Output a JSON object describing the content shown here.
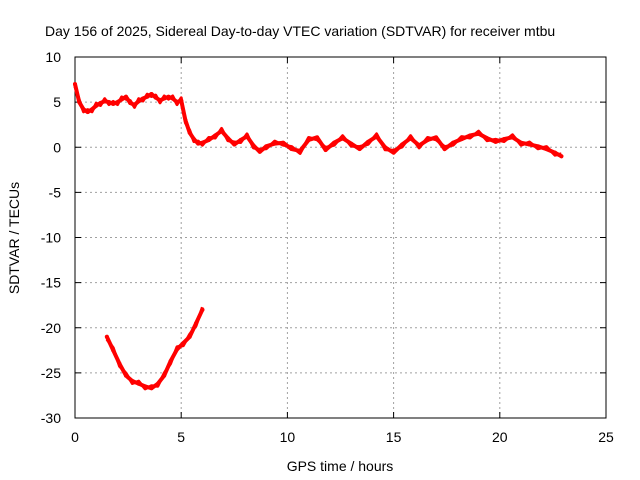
{
  "chart_data": {
    "type": "line",
    "title": "Day 156 of 2025, Sidereal Day-to-day VTEC variation (SDTVAR) for receiver mtbu",
    "xlabel": "GPS time / hours",
    "ylabel": "SDTVAR / TECUs",
    "xlim": [
      0,
      25
    ],
    "ylim": [
      -30,
      10
    ],
    "xticks": [
      "0",
      "5",
      "10",
      "15",
      "20",
      "25"
    ],
    "yticks": [
      "10",
      "5",
      "0",
      "-5",
      "-10",
      "-15",
      "-20",
      "-25",
      "-30"
    ],
    "grid": true,
    "series": [
      {
        "name": "main",
        "color": "#ff0000",
        "x": [
          0.0,
          0.2,
          0.4,
          0.6,
          0.8,
          1.0,
          1.2,
          1.4,
          1.6,
          1.8,
          2.0,
          2.2,
          2.4,
          2.6,
          2.8,
          3.0,
          3.2,
          3.4,
          3.6,
          3.8,
          4.0,
          4.2,
          4.4,
          4.6,
          4.8,
          5.0,
          5.2,
          5.4,
          5.6,
          5.8,
          6.0,
          6.3,
          6.6,
          6.9,
          7.2,
          7.5,
          7.8,
          8.1,
          8.4,
          8.7,
          9.0,
          9.4,
          9.8,
          10.2,
          10.6,
          11.0,
          11.4,
          11.8,
          12.2,
          12.6,
          13.0,
          13.4,
          13.8,
          14.2,
          14.6,
          15.0,
          15.4,
          15.8,
          16.2,
          16.6,
          17.0,
          17.4,
          17.8,
          18.2,
          18.6,
          19.0,
          19.4,
          19.8,
          20.2,
          20.6,
          21.0,
          21.4,
          21.8,
          22.2,
          22.6,
          22.9
        ],
        "y": [
          7.0,
          5.0,
          4.2,
          3.9,
          4.2,
          4.6,
          4.9,
          5.1,
          5.0,
          4.8,
          5.0,
          5.3,
          5.6,
          4.9,
          4.7,
          5.1,
          5.4,
          5.6,
          5.9,
          5.5,
          5.2,
          5.4,
          5.6,
          5.4,
          5.0,
          5.2,
          3.0,
          1.6,
          0.9,
          0.4,
          0.5,
          0.8,
          1.3,
          1.8,
          1.0,
          0.3,
          0.8,
          1.2,
          0.2,
          -0.5,
          0.1,
          0.4,
          0.5,
          -0.2,
          -0.4,
          0.8,
          1.1,
          -0.3,
          0.5,
          1.0,
          0.4,
          -0.2,
          0.6,
          1.2,
          0.0,
          -0.6,
          0.3,
          1.0,
          0.2,
          0.8,
          1.1,
          -0.2,
          0.5,
          0.9,
          1.3,
          1.5,
          1.0,
          0.6,
          0.9,
          1.1,
          0.5,
          0.3,
          0.1,
          -0.2,
          -0.6,
          -1.0
        ]
      },
      {
        "name": "secondary",
        "color": "#ff0000",
        "x": [
          1.5,
          1.8,
          2.1,
          2.4,
          2.7,
          3.0,
          3.3,
          3.6,
          3.9,
          4.2,
          4.5,
          4.8,
          5.1,
          5.4,
          5.7,
          6.0
        ],
        "y": [
          -21.0,
          -22.5,
          -24.0,
          -25.3,
          -25.9,
          -26.2,
          -26.5,
          -26.7,
          -26.2,
          -25.3,
          -23.7,
          -22.4,
          -21.7,
          -21.0,
          -19.5,
          -18.0
        ]
      }
    ]
  }
}
